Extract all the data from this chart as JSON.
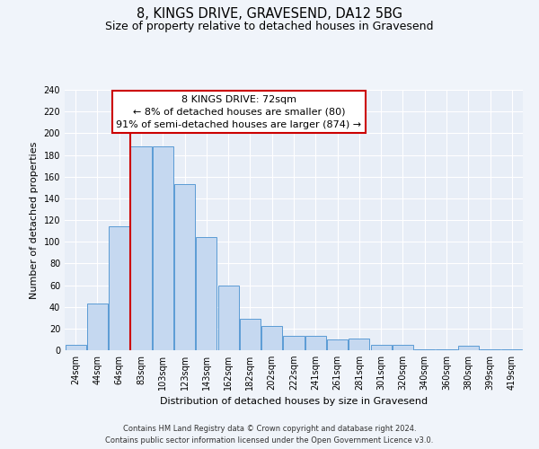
{
  "title": "8, KINGS DRIVE, GRAVESEND, DA12 5BG",
  "subtitle": "Size of property relative to detached houses in Gravesend",
  "xlabel": "Distribution of detached houses by size in Gravesend",
  "ylabel": "Number of detached properties",
  "bar_labels": [
    "24sqm",
    "44sqm",
    "64sqm",
    "83sqm",
    "103sqm",
    "123sqm",
    "143sqm",
    "162sqm",
    "182sqm",
    "202sqm",
    "222sqm",
    "241sqm",
    "261sqm",
    "281sqm",
    "301sqm",
    "320sqm",
    "340sqm",
    "360sqm",
    "380sqm",
    "399sqm",
    "419sqm"
  ],
  "bar_values": [
    5,
    43,
    114,
    188,
    188,
    153,
    104,
    60,
    29,
    22,
    13,
    13,
    10,
    11,
    5,
    5,
    1,
    1,
    4,
    1,
    1
  ],
  "bar_color": "#c5d8f0",
  "bar_edge_color": "#5b9bd5",
  "red_line_x": 2.5,
  "annotation_box_title": "8 KINGS DRIVE: 72sqm",
  "annotation_line1": "← 8% of detached houses are smaller (80)",
  "annotation_line2": "91% of semi-detached houses are larger (874) →",
  "annotation_box_edge_color": "#cc0000",
  "ylim": [
    0,
    240
  ],
  "yticks": [
    0,
    20,
    40,
    60,
    80,
    100,
    120,
    140,
    160,
    180,
    200,
    220,
    240
  ],
  "footer_line1": "Contains HM Land Registry data © Crown copyright and database right 2024.",
  "footer_line2": "Contains public sector information licensed under the Open Government Licence v3.0.",
  "bg_color": "#e8eef7",
  "grid_color": "#ffffff",
  "fig_bg_color": "#f0f4fa",
  "title_fontsize": 10.5,
  "subtitle_fontsize": 9,
  "axis_label_fontsize": 8,
  "tick_fontsize": 7,
  "footer_fontsize": 6,
  "annotation_fontsize": 8
}
